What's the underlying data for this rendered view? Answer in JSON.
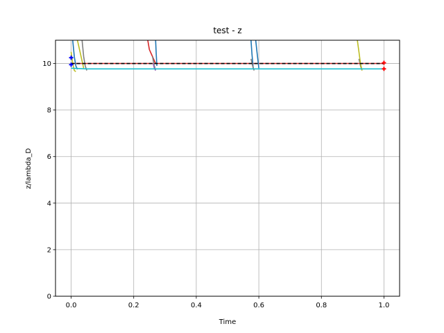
{
  "chart_data": {
    "type": "line",
    "title": "test - z",
    "xlabel": "Time",
    "ylabel": "z/lambda_D",
    "xlim": [
      -0.05,
      1.05
    ],
    "ylim": [
      0,
      11
    ],
    "xticks": [
      0.0,
      0.2,
      0.4,
      0.6,
      0.8,
      1.0
    ],
    "xtick_labels": [
      "0.0",
      "0.2",
      "0.4",
      "0.6",
      "0.8",
      "1.0"
    ],
    "yticks": [
      0,
      2,
      4,
      6,
      8,
      10
    ],
    "ytick_labels": [
      "0",
      "2",
      "4",
      "6",
      "8",
      "10"
    ],
    "grid": true,
    "reference_line": {
      "y": 10,
      "x": [
        0,
        1
      ],
      "color": "#000000",
      "style": "dashed"
    },
    "series": [
      {
        "color": "#d62728",
        "x": [
          0,
          1
        ],
        "y": [
          10,
          10
        ]
      },
      {
        "color": "#d62728",
        "x": [
          0.245,
          0.25,
          0.26,
          0.27
        ],
        "y": [
          11,
          10.6,
          10.3,
          10.0
        ]
      },
      {
        "color": "#1f77b4",
        "x": [
          0.005,
          0.01,
          0.015,
          0.02
        ],
        "y": [
          11,
          10.3,
          9.9,
          9.75
        ]
      },
      {
        "color": "#1f77b4",
        "x": [
          0.27,
          0.272,
          0.274
        ],
        "y": [
          11,
          10.4,
          9.9
        ]
      },
      {
        "color": "#1f77b4",
        "x": [
          0.575,
          0.578,
          0.582
        ],
        "y": [
          11,
          10.4,
          9.8
        ]
      },
      {
        "color": "#1f77b4",
        "x": [
          0.59,
          0.594,
          0.6
        ],
        "y": [
          11,
          10.5,
          9.8
        ]
      },
      {
        "color": "#7f7f7f",
        "x": [
          0.035,
          0.04,
          0.045,
          0.05
        ],
        "y": [
          11,
          10.3,
          9.9,
          9.7
        ]
      },
      {
        "color": "#7f7f7f",
        "x": [
          0.26,
          0.265,
          0.27
        ],
        "y": [
          10.3,
          9.95,
          9.7
        ]
      },
      {
        "color": "#7f7f7f",
        "x": [
          0.575,
          0.58,
          0.585
        ],
        "y": [
          10.2,
          9.9,
          9.7
        ]
      },
      {
        "color": "#7f7f7f",
        "x": [
          0.92,
          0.925,
          0.93
        ],
        "y": [
          10.2,
          9.9,
          9.7
        ]
      },
      {
        "color": "#bcbd22",
        "x": [
          0,
          0.005,
          0.01,
          0.015
        ],
        "y": [
          10.5,
          10.0,
          9.7,
          9.65
        ]
      },
      {
        "color": "#bcbd22",
        "x": [
          0.02,
          0.03,
          0.04
        ],
        "y": [
          11,
          10.4,
          9.8
        ]
      },
      {
        "color": "#bcbd22",
        "x": [
          0.915,
          0.92,
          0.925,
          0.93
        ],
        "y": [
          11,
          10.5,
          10.0,
          9.7
        ]
      },
      {
        "color": "#9467bd",
        "x": [
          0.262,
          0.266,
          0.27
        ],
        "y": [
          10.0,
          9.8,
          9.7
        ]
      },
      {
        "color": "#17becf",
        "x": [
          0,
          0.05,
          0.3,
          0.6,
          0.9,
          1.0
        ],
        "y": [
          9.8,
          9.77,
          9.77,
          9.77,
          9.77,
          9.77
        ]
      }
    ],
    "markers": [
      {
        "color": "#0000ff",
        "x": 0,
        "y": [
          10.25,
          9.95
        ]
      },
      {
        "color": "#ff0000",
        "x": 1,
        "y": [
          10.03,
          9.77
        ]
      }
    ]
  }
}
